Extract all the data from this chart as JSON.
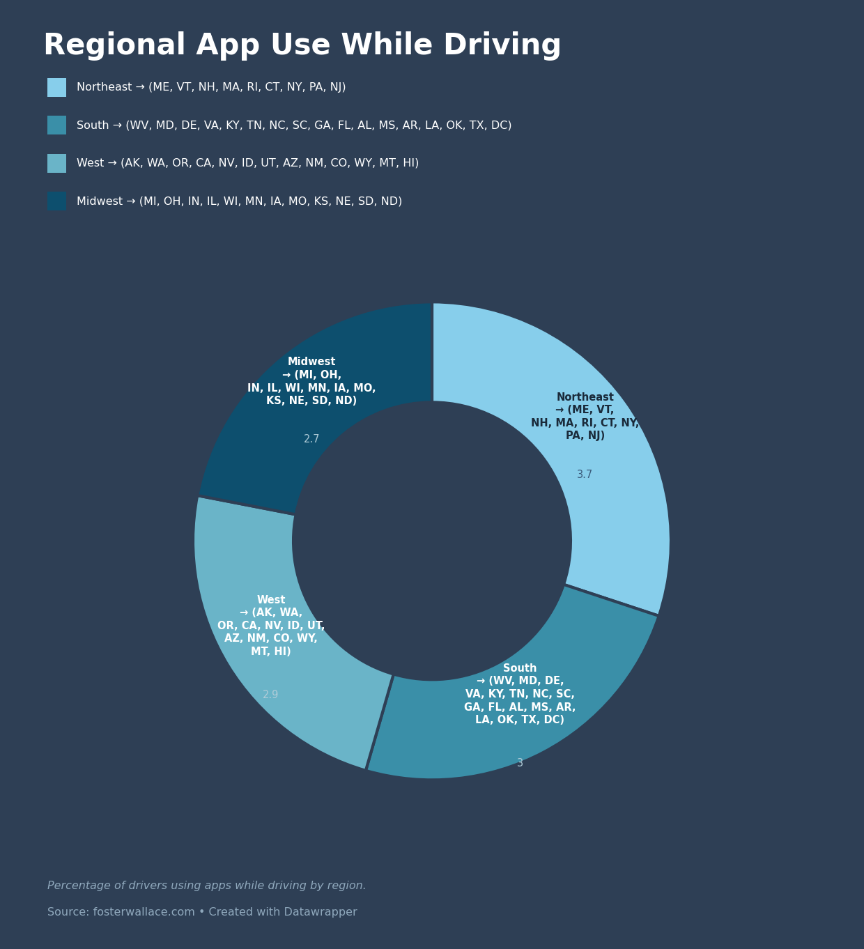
{
  "title": "Regional App Use While Driving",
  "background_color": "#2e3f55",
  "regions": [
    "Northeast",
    "South",
    "West",
    "Midwest"
  ],
  "values": [
    3.7,
    3.0,
    2.9,
    2.7
  ],
  "colors": [
    "#87ceeb",
    "#3a8fa8",
    "#6ab4c8",
    "#0d4f6e"
  ],
  "legend_labels": [
    "Northeast → (ME, VT, NH, MA, RI, CT, NY, PA, NJ)",
    "South → (WV, MD, DE, VA, KY, TN, NC, SC, GA, FL, AL, MS, AR, LA, OK, TX, DC)",
    "West → (AK, WA, OR, CA, NV, ID, UT, AZ, NM, CO, WY, MT, HI)",
    "Midwest → (MI, OH, IN, IL, WI, MN, IA, MO, KS, NE, SD, ND)"
  ],
  "wedge_bold_labels": [
    "Northeast\n→ (ME, VT,\nNH, MA, RI, CT, NY,\nPA, NJ)",
    "South\n→ (WV, MD, DE,\nVA, KY, TN, NC, SC,\nGA, FL, AL, MS, AR,\nLA, OK, TX, DC)",
    "West\n→ (AK, WA,\nOR, CA, NV, ID, UT,\nAZ, NM, CO, WY,\nMT, HI)",
    "Midwest\n→ (MI, OH,\nIN, IL, WI, MN, IA, MO,\nKS, NE, SD, ND)"
  ],
  "wedge_values": [
    "3.7",
    "3",
    "2.9",
    "2.7"
  ],
  "label_colors": [
    "#1a2a3a",
    "#ffffff",
    "#ffffff",
    "#ffffff"
  ],
  "value_colors": [
    "#3a5a7a",
    "#b0ccd8",
    "#b0ccd8",
    "#b0ccd8"
  ],
  "caption": "Percentage of drivers using apps while driving by region.",
  "source": "Source: fosterwallace.com • Created with Datawrapper",
  "donut_width": 0.42
}
